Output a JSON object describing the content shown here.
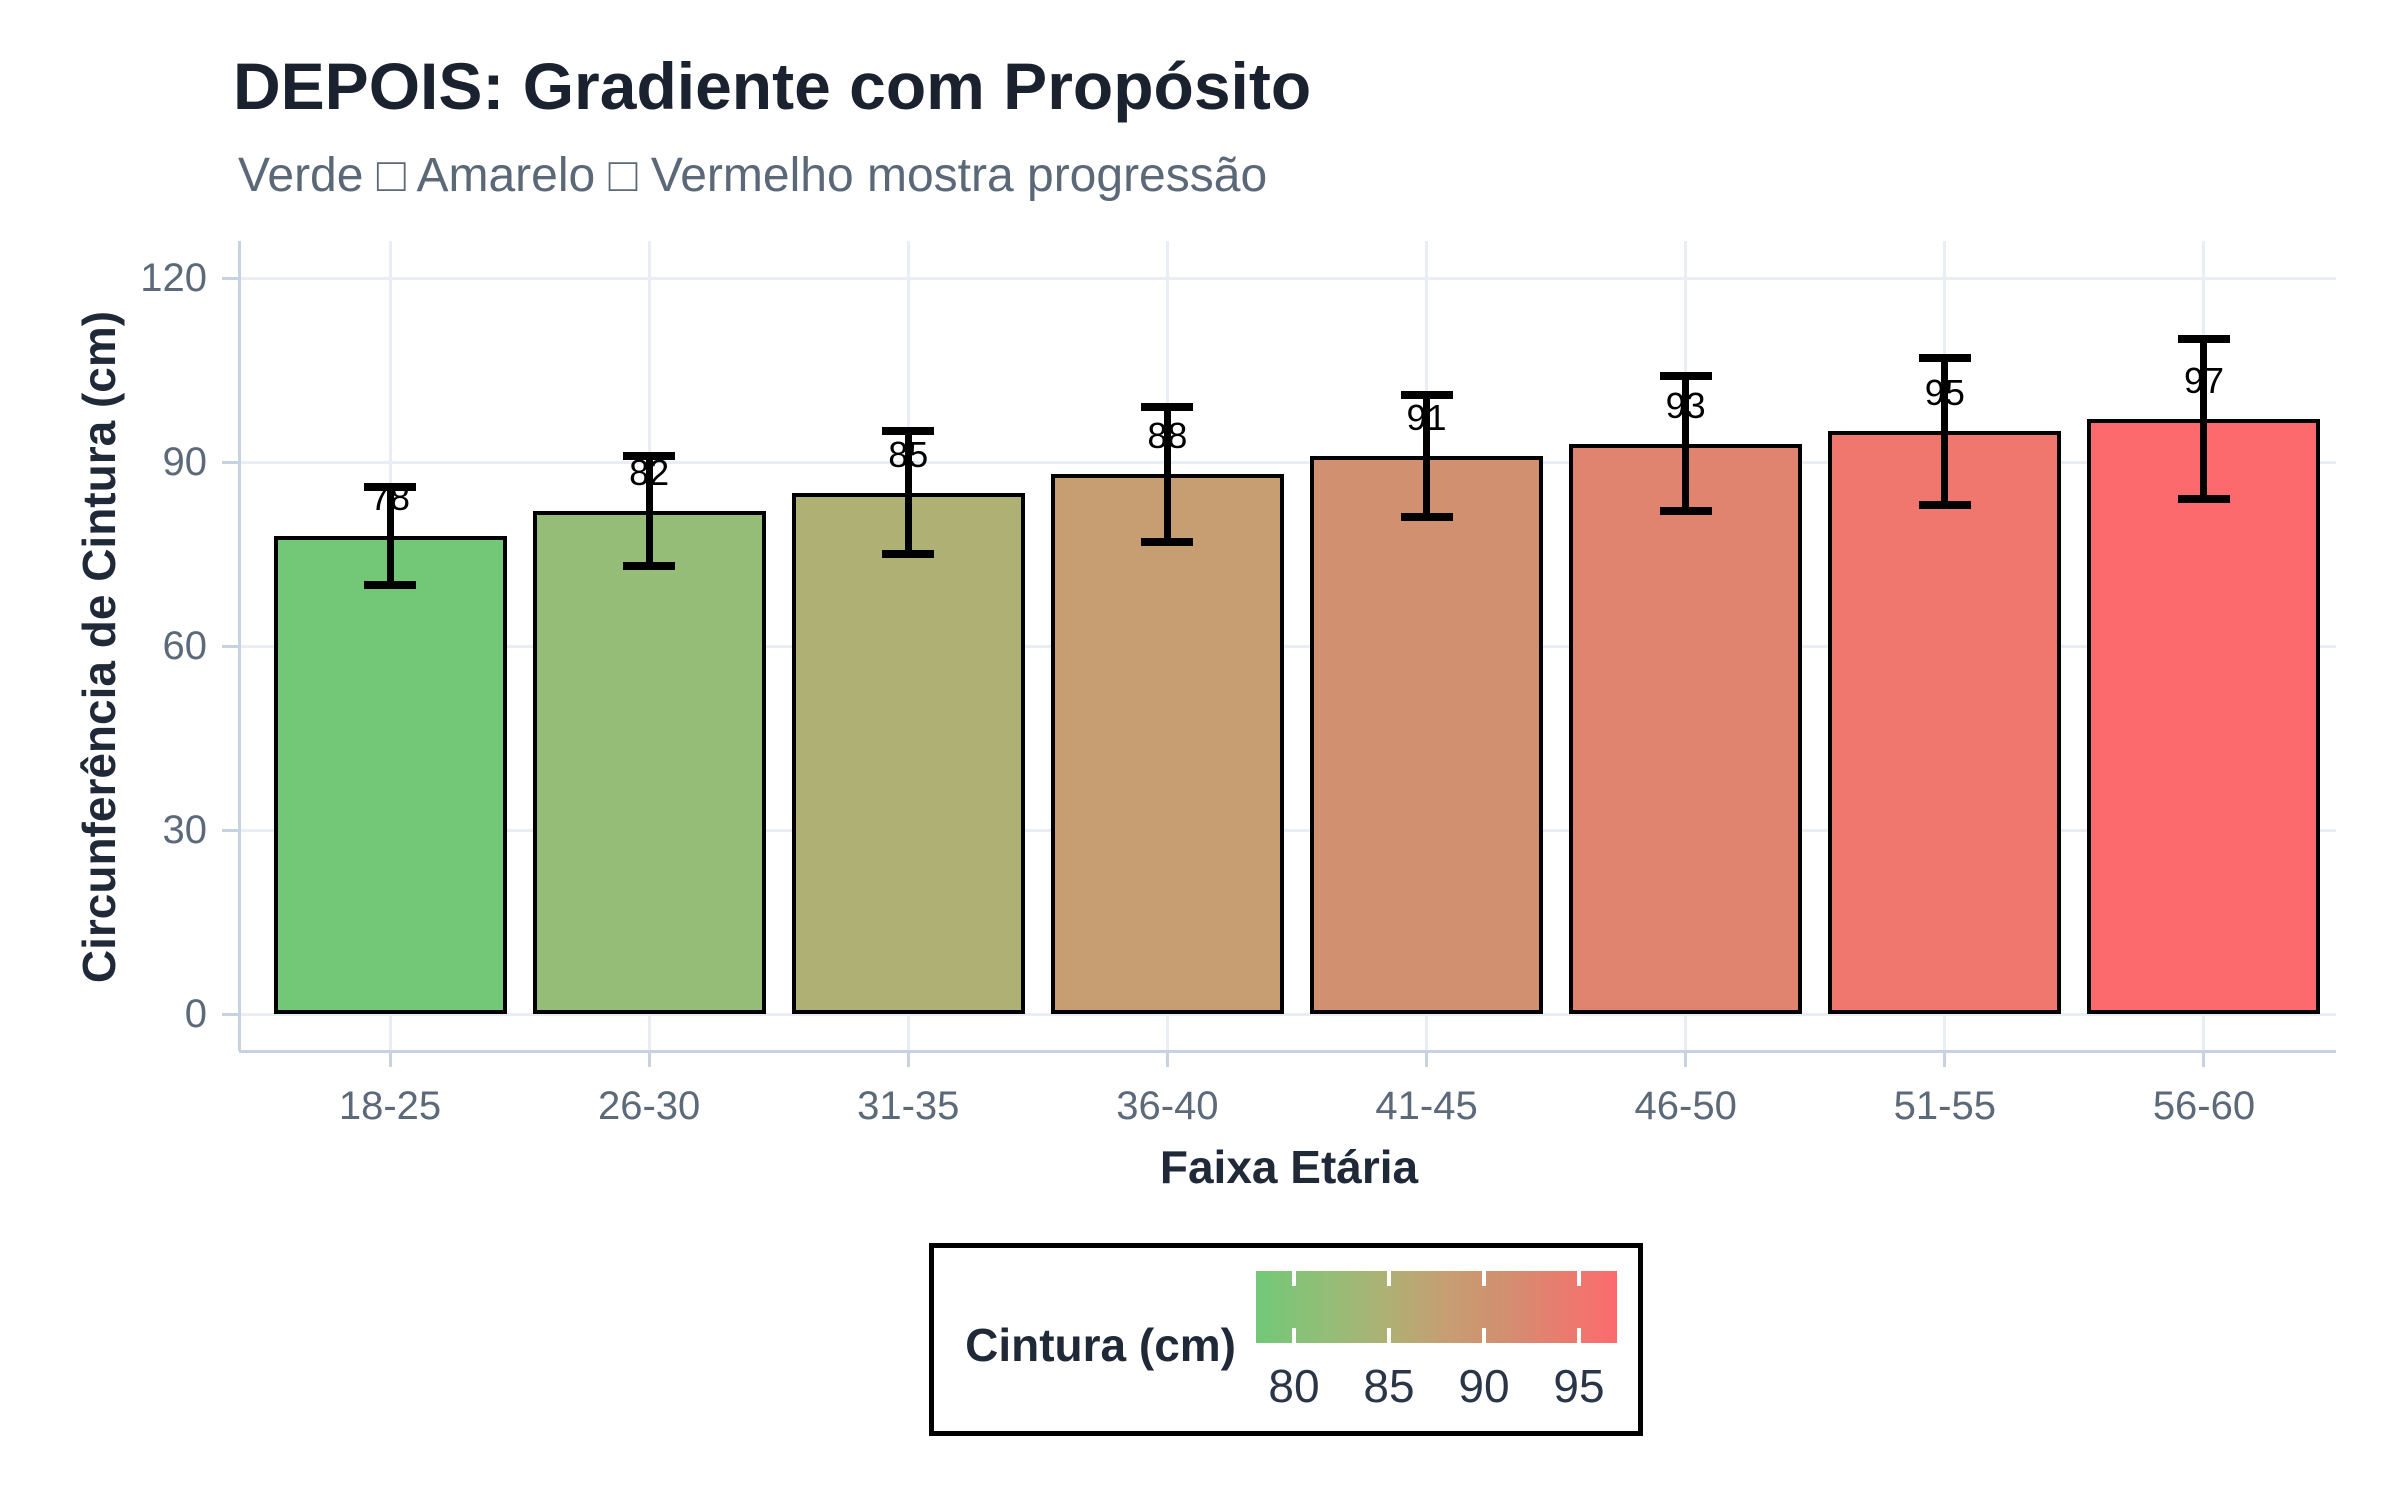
{
  "title": "DEPOIS: Gradiente com Propósito",
  "subtitle": "Verde □ Amarelo □ Vermelho mostra progressão",
  "chart_data": {
    "type": "bar",
    "title": "DEPOIS: Gradiente com Propósito",
    "subtitle": "Verde □ Amarelo □ Vermelho mostra progressão",
    "xlabel": "Faixa Etária",
    "ylabel": "Circunferência de Cintura (cm)",
    "categories": [
      "18-25",
      "26-30",
      "31-35",
      "36-40",
      "41-45",
      "46-50",
      "51-55",
      "56-60"
    ],
    "values": [
      78,
      82,
      85,
      88,
      91,
      93,
      95,
      97
    ],
    "error_bars": [
      8,
      9,
      10,
      11,
      10,
      11,
      12,
      13
    ],
    "bar_colors": [
      "#72c877",
      "#96bd77",
      "#afb074",
      "#c69e72",
      "#d19070",
      "#e0836f",
      "#ef776e",
      "#fc6a6d"
    ],
    "ylim": [
      0,
      120
    ],
    "yticks": [
      0,
      30,
      60,
      90,
      120
    ],
    "grid": true,
    "legend": {
      "title": "Cintura (cm)",
      "tick_values": [
        80,
        85,
        90,
        95
      ],
      "value_range": [
        78,
        97
      ],
      "position": "bottom-center"
    }
  },
  "colors": {
    "background": "#ffffff",
    "title_text": "#1a222f",
    "subtitle_text": "#5a6878",
    "axis_title_text": "#1f2937",
    "tick_text": "#5b6979",
    "gridline": "#e9edf4",
    "axis_line": "#c8d1df",
    "bar_border": "#000000",
    "error_bar": "#000000",
    "legend_border": "#000000"
  }
}
